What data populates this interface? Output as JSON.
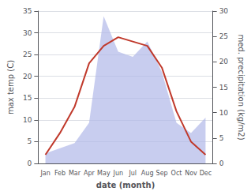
{
  "chart_data": {
    "type": "line",
    "categories": [
      "Jan",
      "Feb",
      "Mar",
      "Apr",
      "May",
      "Jun",
      "Jul",
      "Aug",
      "Sep",
      "Oct",
      "Nov",
      "Dec"
    ],
    "xlabel": "date (month)",
    "ylabel": "max temp (C)",
    "y2label": "med. precipitation (kg/m2)",
    "series": [
      {
        "type": "area",
        "color": "#b0b8e8",
        "axis": "y2",
        "values": [
          2,
          3,
          4,
          8,
          29,
          22,
          21,
          24,
          18,
          8,
          6,
          9
        ]
      },
      {
        "type": "line",
        "color": "#c0392b",
        "values": [
          2,
          7,
          13,
          23,
          27,
          29,
          28,
          27,
          22,
          12,
          5,
          2
        ]
      }
    ],
    "ylim": [
      0,
      35
    ],
    "yticks": [
      0,
      5,
      10,
      15,
      20,
      25,
      30,
      35
    ],
    "y2lim": [
      0,
      30
    ],
    "y2ticks": [
      0,
      5,
      10,
      15,
      20,
      25,
      30
    ],
    "grid": true
  }
}
